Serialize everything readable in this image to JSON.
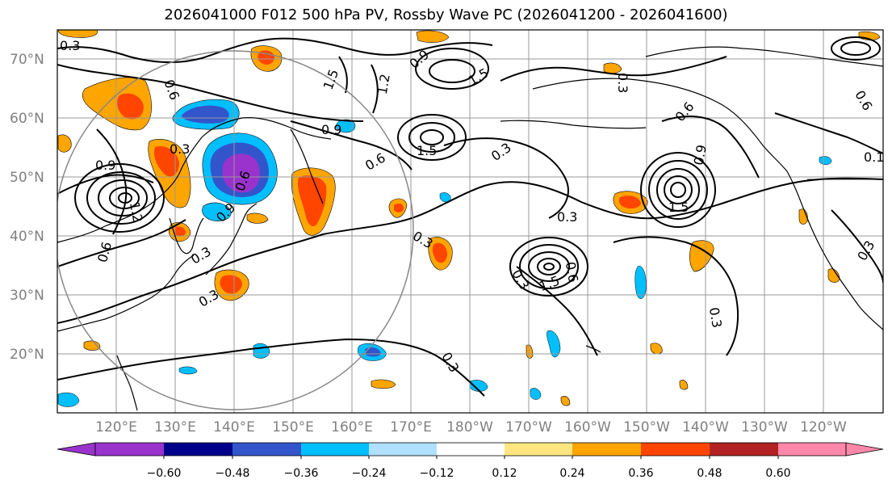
{
  "title": "2026041000 F012 500 hPa PV, Rossby Wave PC (2026041200 - 2026041600)",
  "lat_labels": [
    "70°N",
    "60°N",
    "50°N",
    "40°N",
    "30°N",
    "20°N"
  ],
  "lon_labels": [
    "120°E",
    "130°E",
    "140°E",
    "150°E",
    "160°E",
    "170°E",
    "180°W",
    "170°W",
    "160°W",
    "150°W",
    "140°W",
    "130°W",
    "120°W"
  ],
  "contour_labels": [
    {
      "id": "c1",
      "text": "0.3"
    },
    {
      "id": "c2",
      "text": "0.6"
    },
    {
      "id": "c3",
      "text": "1.5"
    },
    {
      "id": "c4",
      "text": "1.2"
    },
    {
      "id": "c5",
      "text": "0.9"
    },
    {
      "id": "c6",
      "text": "1.5"
    },
    {
      "id": "c7",
      "text": "0.3"
    },
    {
      "id": "c8",
      "text": "0.9"
    },
    {
      "id": "c9",
      "text": "1.5"
    },
    {
      "id": "c10",
      "text": "0.6"
    },
    {
      "id": "c11",
      "text": "0.3"
    },
    {
      "id": "c12",
      "text": "0.6"
    },
    {
      "id": "c13",
      "text": "0.3"
    },
    {
      "id": "c14",
      "text": "0.9"
    },
    {
      "id": "c15",
      "text": "0.3"
    },
    {
      "id": "c16",
      "text": "0.3"
    },
    {
      "id": "c17",
      "text": "0.9"
    },
    {
      "id": "c18",
      "text": "0.3"
    },
    {
      "id": "c19",
      "text": "0.6"
    },
    {
      "id": "c20",
      "text": "0.3"
    },
    {
      "id": "c21",
      "text": "0.3"
    },
    {
      "id": "c22",
      "text": "0.6"
    },
    {
      "id": "c23",
      "text": "0.1"
    },
    {
      "id": "c24",
      "text": "0.9"
    },
    {
      "id": "c25",
      "text": "1.2"
    },
    {
      "id": "c26",
      "text": "0.6"
    },
    {
      "id": "c27",
      "text": "1.5"
    },
    {
      "id": "c28",
      "text": "0.3"
    },
    {
      "id": "c29",
      "text": "0.3"
    },
    {
      "id": "c30",
      "text": "0.6"
    },
    {
      "id": "c31",
      "text": "1.5"
    },
    {
      "id": "c32",
      "text": "0.3"
    }
  ],
  "colorbar": {
    "ticks": [
      "−0.60",
      "−0.48",
      "−0.36",
      "−0.24",
      "−0.12",
      "0.12",
      "0.24",
      "0.36",
      "0.48",
      "0.60"
    ],
    "colors": [
      "#9933cc",
      "#00008b",
      "#3355cc",
      "#00bfff",
      "#b0e0ff",
      "#ffffff",
      "#ffe680",
      "#ffa500",
      "#ff4500",
      "#b22222",
      "#ff88aa"
    ]
  },
  "colors": {
    "neg_strong": "#9933cc",
    "neg_dark": "#00008b",
    "neg_mid": "#3355cc",
    "neg_light": "#00bfff",
    "pos_light": "#ffe680",
    "pos_mid": "#ffa500",
    "pos_strong": "#ff4500"
  }
}
